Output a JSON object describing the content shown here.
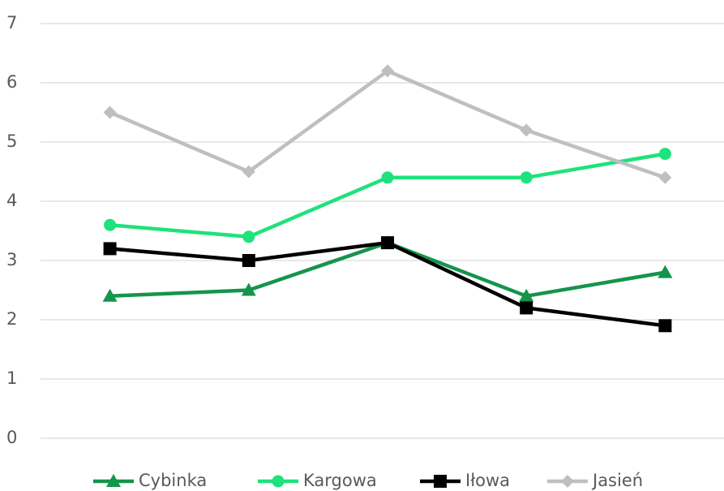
{
  "chart_data": {
    "type": "line",
    "categories": [
      null,
      null,
      null,
      null,
      null
    ],
    "series": [
      {
        "name": "Cybinka",
        "color": "#14954a",
        "marker": "triangle",
        "values": [
          2.4,
          2.5,
          3.3,
          2.4,
          2.8
        ]
      },
      {
        "name": "Kargowa",
        "color": "#1ee27b",
        "marker": "circle",
        "values": [
          3.6,
          3.4,
          4.4,
          4.4,
          4.8
        ]
      },
      {
        "name": "Iłowa",
        "color": "#000000",
        "marker": "square",
        "values": [
          3.2,
          3.0,
          3.3,
          2.2,
          1.9
        ]
      },
      {
        "name": "Jasień",
        "color": "#bfbfbf",
        "marker": "diamond",
        "values": [
          5.5,
          4.5,
          6.2,
          5.2,
          4.4
        ]
      }
    ],
    "ylim": [
      0,
      7
    ],
    "yticks": [
      0,
      1,
      2,
      3,
      4,
      5,
      6,
      7
    ],
    "grid": true,
    "legend": "bottom"
  }
}
